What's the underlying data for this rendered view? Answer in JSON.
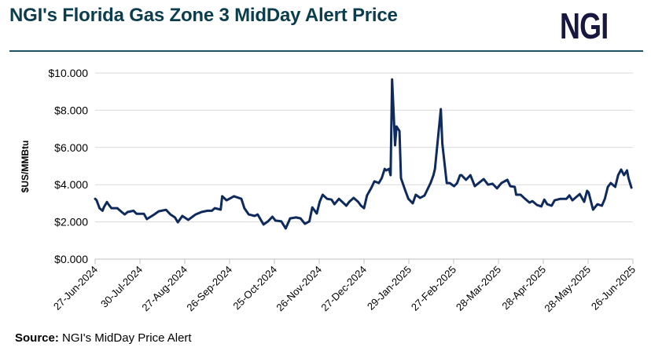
{
  "header": {
    "title": "NGI's Florida Gas Zone 3 MidDay Alert Price",
    "logo_text": "NGI"
  },
  "source": {
    "label": "Source:",
    "text": "NGI's MidDay Price Alert"
  },
  "colors": {
    "title": "#0b3d4c",
    "line": "#0f2a5c",
    "rule": "#1c5560",
    "logo": "#17173f",
    "grid": "#d9d9d9"
  },
  "chart_data": {
    "type": "line",
    "title": "NGI's Florida Gas Zone 3 MidDay Alert Price",
    "xlabel": "",
    "ylabel": "$US/MMBtu",
    "ylim": [
      0,
      10
    ],
    "yticks": [
      "$0.000",
      "$2.000",
      "$4.000",
      "$6.000",
      "$8.000",
      "$10.000"
    ],
    "ytick_values": [
      0,
      2,
      4,
      6,
      8,
      10
    ],
    "xticks": [
      "27-Jun-2024",
      "30-Jul-2024",
      "27-Aug-2024",
      "26-Sep-2024",
      "25-Oct-2024",
      "26-Nov-2024",
      "27-Dec-2024",
      "29-Jan-2025",
      "27-Feb-2025",
      "28-Mar-2025",
      "28-Apr-2025",
      "28-May-2025",
      "26-Jun-2025"
    ],
    "xlim": [
      "2024-06-27",
      "2025-06-26"
    ],
    "grid": "horizontal",
    "legend": "none",
    "series": [
      {
        "points": [
          [
            "2024-06-27",
            3.24
          ],
          [
            "2024-06-28",
            3.16
          ],
          [
            "2024-06-30",
            2.74
          ],
          [
            "2024-07-02",
            2.6
          ],
          [
            "2024-07-03",
            2.8
          ],
          [
            "2024-07-05",
            3.07
          ],
          [
            "2024-07-06",
            2.95
          ],
          [
            "2024-07-08",
            2.74
          ],
          [
            "2024-07-12",
            2.74
          ],
          [
            "2024-07-15",
            2.53
          ],
          [
            "2024-07-17",
            2.4
          ],
          [
            "2024-07-19",
            2.53
          ],
          [
            "2024-07-23",
            2.6
          ],
          [
            "2024-07-25",
            2.44
          ],
          [
            "2024-07-30",
            2.44
          ],
          [
            "2024-08-01",
            2.15
          ],
          [
            "2024-08-06",
            2.4
          ],
          [
            "2024-08-09",
            2.57
          ],
          [
            "2024-08-14",
            2.65
          ],
          [
            "2024-08-17",
            2.4
          ],
          [
            "2024-08-20",
            2.24
          ],
          [
            "2024-08-22",
            1.98
          ],
          [
            "2024-08-25",
            2.32
          ],
          [
            "2024-08-29",
            2.11
          ],
          [
            "2024-09-03",
            2.4
          ],
          [
            "2024-09-07",
            2.53
          ],
          [
            "2024-09-11",
            2.6
          ],
          [
            "2024-09-14",
            2.6
          ],
          [
            "2024-09-16",
            2.74
          ],
          [
            "2024-09-20",
            2.66
          ],
          [
            "2024-09-21",
            3.38
          ],
          [
            "2024-09-24",
            3.16
          ],
          [
            "2024-09-29",
            3.38
          ],
          [
            "2024-10-04",
            3.24
          ],
          [
            "2024-10-06",
            2.74
          ],
          [
            "2024-10-09",
            2.4
          ],
          [
            "2024-10-13",
            2.32
          ],
          [
            "2024-10-15",
            2.4
          ],
          [
            "2024-10-19",
            1.86
          ],
          [
            "2024-10-22",
            2.03
          ],
          [
            "2024-10-25",
            2.28
          ],
          [
            "2024-10-27",
            2.07
          ],
          [
            "2024-10-31",
            2.03
          ],
          [
            "2024-11-03",
            1.65
          ],
          [
            "2024-11-06",
            2.19
          ],
          [
            "2024-11-10",
            2.24
          ],
          [
            "2024-11-13",
            2.19
          ],
          [
            "2024-11-16",
            1.9
          ],
          [
            "2024-11-19",
            2.03
          ],
          [
            "2024-11-21",
            2.78
          ],
          [
            "2024-11-24",
            2.45
          ],
          [
            "2024-11-26",
            3.08
          ],
          [
            "2024-11-28",
            3.46
          ],
          [
            "2024-12-01",
            3.24
          ],
          [
            "2024-12-04",
            3.2
          ],
          [
            "2024-12-06",
            2.95
          ],
          [
            "2024-12-09",
            3.24
          ],
          [
            "2024-12-14",
            2.87
          ],
          [
            "2024-12-16",
            3.08
          ],
          [
            "2024-12-19",
            3.29
          ],
          [
            "2024-12-22",
            3.08
          ],
          [
            "2024-12-24",
            2.87
          ],
          [
            "2024-12-26",
            2.74
          ],
          [
            "2024-12-28",
            3.42
          ],
          [
            "2024-12-31",
            3.84
          ],
          [
            "2025-01-02",
            4.18
          ],
          [
            "2025-01-05",
            4.09
          ],
          [
            "2025-01-07",
            4.35
          ],
          [
            "2025-01-09",
            4.85
          ],
          [
            "2025-01-10",
            4.77
          ],
          [
            "2025-01-12",
            4.85
          ],
          [
            "2025-01-13",
            4.51
          ],
          [
            "2025-01-14",
            9.66
          ],
          [
            "2025-01-16",
            6.12
          ],
          [
            "2025-01-17",
            7.13
          ],
          [
            "2025-01-19",
            6.88
          ],
          [
            "2025-01-20",
            4.35
          ],
          [
            "2025-01-23",
            3.67
          ],
          [
            "2025-01-25",
            3.24
          ],
          [
            "2025-01-28",
            3.0
          ],
          [
            "2025-01-30",
            3.46
          ],
          [
            "2025-02-02",
            3.29
          ],
          [
            "2025-02-05",
            3.42
          ],
          [
            "2025-02-09",
            4.09
          ],
          [
            "2025-02-11",
            4.51
          ],
          [
            "2025-02-12",
            4.85
          ],
          [
            "2025-02-16",
            8.06
          ],
          [
            "2025-02-17",
            6.2
          ],
          [
            "2025-02-20",
            4.09
          ],
          [
            "2025-02-22",
            4.09
          ],
          [
            "2025-02-25",
            3.92
          ],
          [
            "2025-02-27",
            4.09
          ],
          [
            "2025-03-01",
            4.51
          ],
          [
            "2025-03-02",
            4.51
          ],
          [
            "2025-03-05",
            4.26
          ],
          [
            "2025-03-08",
            4.51
          ],
          [
            "2025-03-11",
            3.92
          ],
          [
            "2025-03-17",
            4.3
          ],
          [
            "2025-03-20",
            4.0
          ],
          [
            "2025-03-23",
            4.05
          ],
          [
            "2025-03-26",
            3.8
          ],
          [
            "2025-03-29",
            4.09
          ],
          [
            "2025-04-02",
            4.26
          ],
          [
            "2025-04-04",
            3.92
          ],
          [
            "2025-04-07",
            3.88
          ],
          [
            "2025-04-08",
            3.46
          ],
          [
            "2025-04-11",
            3.46
          ],
          [
            "2025-04-14",
            3.24
          ],
          [
            "2025-04-17",
            3.04
          ],
          [
            "2025-04-19",
            3.12
          ],
          [
            "2025-04-22",
            2.91
          ],
          [
            "2025-04-25",
            2.83
          ],
          [
            "2025-04-27",
            3.2
          ],
          [
            "2025-04-29",
            2.95
          ],
          [
            "2025-05-02",
            2.87
          ],
          [
            "2025-05-04",
            3.16
          ],
          [
            "2025-05-08",
            3.24
          ],
          [
            "2025-05-12",
            3.24
          ],
          [
            "2025-05-14",
            3.42
          ],
          [
            "2025-05-16",
            3.16
          ],
          [
            "2025-05-21",
            3.5
          ],
          [
            "2025-05-24",
            3.08
          ],
          [
            "2025-05-26",
            3.67
          ],
          [
            "2025-05-27",
            3.59
          ],
          [
            "2025-05-30",
            2.66
          ],
          [
            "2025-06-02",
            2.95
          ],
          [
            "2025-06-05",
            2.87
          ],
          [
            "2025-06-07",
            3.24
          ],
          [
            "2025-06-09",
            3.88
          ],
          [
            "2025-06-11",
            4.09
          ],
          [
            "2025-06-14",
            3.88
          ],
          [
            "2025-06-16",
            4.51
          ],
          [
            "2025-06-18",
            4.81
          ],
          [
            "2025-06-20",
            4.51
          ],
          [
            "2025-06-22",
            4.77
          ],
          [
            "2025-06-23",
            4.35
          ],
          [
            "2025-06-25",
            3.84
          ]
        ]
      }
    ]
  }
}
